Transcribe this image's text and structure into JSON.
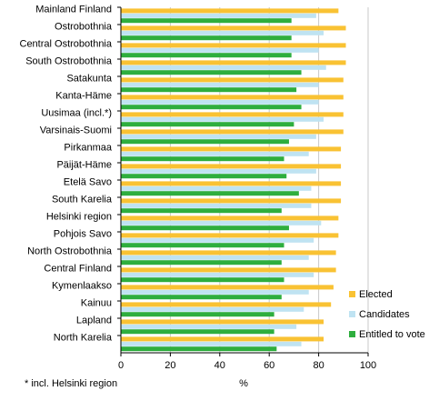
{
  "chart_data": {
    "type": "bar",
    "orientation": "horizontal",
    "categories": [
      "Mainland Finland",
      "Ostrobothnia",
      "Central Ostrobothnia",
      "South Ostrobothnia",
      "Satakunta",
      "Kanta-Häme",
      "Uusimaa (incl.*)",
      "Varsinais-Suomi",
      "Pirkanmaa",
      "Päijät-Häme",
      "Etelä Savo",
      "South Karelia",
      "Helsinki region",
      "Pohjois Savo",
      "North Ostrobothnia",
      "Central Finland",
      "Kymenlaakso",
      "Kainuu",
      "Lapland",
      "North Karelia"
    ],
    "series": [
      {
        "name": "Elected",
        "color": "#F9C233",
        "values": [
          88,
          91,
          91,
          91,
          90,
          90,
          90,
          90,
          89,
          89,
          89,
          89,
          88,
          88,
          87,
          87,
          86,
          85,
          82,
          82
        ]
      },
      {
        "name": "Candidates",
        "color": "#BFE3F2",
        "values": [
          79,
          82,
          80,
          83,
          80,
          80,
          82,
          79,
          76,
          79,
          77,
          77,
          81,
          78,
          76,
          78,
          76,
          74,
          71,
          73
        ]
      },
      {
        "name": "Entitled to vote",
        "color": "#2EAE3E",
        "values": [
          69,
          69,
          69,
          73,
          71,
          73,
          70,
          68,
          66,
          67,
          72,
          65,
          68,
          66,
          65,
          66,
          65,
          62,
          62,
          63
        ]
      }
    ],
    "xlim": [
      0,
      100
    ],
    "xticks": [
      "0",
      "20",
      "40",
      "60",
      "80",
      "100"
    ],
    "xlabel": "%",
    "legend_position": "right",
    "grid": "vertical"
  },
  "footnote": "* incl. Helsinki region"
}
